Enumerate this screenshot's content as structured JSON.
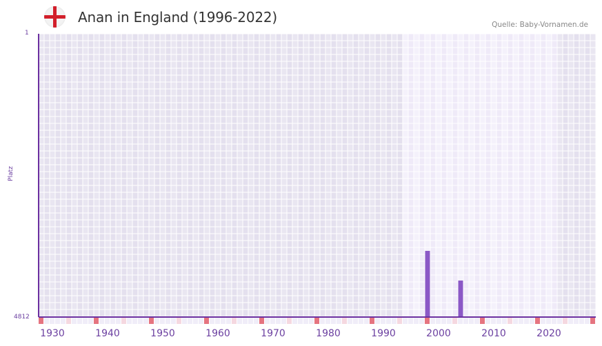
{
  "header": {
    "title": "Anan in England (1996-2022)",
    "flag_icon": "england-flag-icon",
    "source": "Quelle: Baby-Vornamen.de"
  },
  "colors": {
    "bar": "#8b58c6",
    "axis": "#6b2fa0",
    "label": "#6b3fa0",
    "bg_outer": "#e4e0ee",
    "bg_outer_alt": "#e9e6f1",
    "bg_inner": "#efeaf8",
    "bg_inner_alt": "#f4f1fb",
    "grid": "#ffffff",
    "strip_major": "#e57480",
    "strip_minor": "#f5d8e0",
    "strip_base": "#f0edf8"
  },
  "chart_data": {
    "type": "bar",
    "title": "Anan in England (1996-2022)",
    "xlabel": "",
    "ylabel": "Platz",
    "y_inverted": true,
    "ylim": [
      1,
      4812
    ],
    "y_ticks": [
      "1",
      "4812"
    ],
    "x_range": [
      1928,
      2028
    ],
    "x_ticks": [
      1930,
      1940,
      1950,
      1960,
      1970,
      1980,
      1990,
      2000,
      2010,
      2020
    ],
    "highlight_range": [
      1994,
      2021
    ],
    "grid": true,
    "legend": null,
    "series": [
      {
        "name": "Platz",
        "points": [
          {
            "year": 1998,
            "rank": 3688
          },
          {
            "year": 2004,
            "rank": 4192
          }
        ]
      }
    ]
  },
  "axis": {
    "y_top": "1",
    "y_bottom": "4812",
    "y_title": "Platz"
  }
}
